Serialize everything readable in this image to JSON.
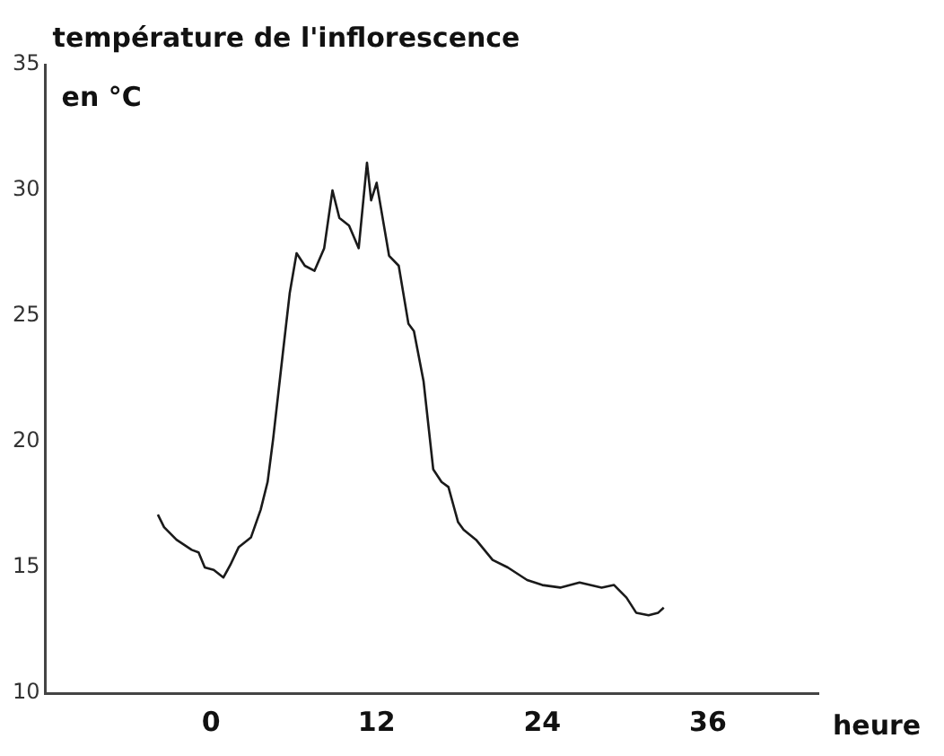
{
  "chart_data": {
    "type": "line",
    "title": "température de l'inflorescence",
    "ylabel": "en °C",
    "xlabel": "heure",
    "x": [
      -3.85,
      -3.4,
      -2.5,
      -1.4,
      -0.9,
      -0.45,
      0.2,
      0.9,
      1.4,
      2.0,
      2.9,
      3.6,
      4.1,
      4.5,
      5.2,
      5.7,
      6.2,
      6.8,
      7.5,
      8.2,
      8.8,
      9.3,
      10.0,
      10.7,
      11.3,
      11.6,
      12.0,
      12.9,
      13.6,
      14.3,
      14.7,
      15.4,
      16.1,
      16.7,
      17.2,
      17.9,
      18.3,
      19.2,
      20.4,
      21.5,
      22.9,
      24.0,
      25.3,
      26.7,
      28.3,
      29.2,
      30.1,
      30.8,
      31.7,
      32.4,
      32.8
    ],
    "values": [
      17.1,
      16.6,
      16.1,
      15.7,
      15.6,
      15.0,
      14.9,
      14.6,
      15.1,
      15.8,
      16.2,
      17.3,
      18.4,
      20.1,
      23.5,
      25.9,
      27.5,
      27.0,
      26.8,
      27.7,
      30.0,
      28.9,
      28.6,
      27.7,
      31.1,
      29.6,
      30.3,
      27.4,
      27.0,
      24.7,
      24.4,
      22.4,
      18.9,
      18.4,
      18.2,
      16.8,
      16.5,
      16.1,
      15.3,
      15.0,
      14.5,
      14.3,
      14.2,
      14.4,
      14.2,
      14.3,
      13.8,
      13.2,
      13.1,
      13.2,
      13.4
    ],
    "color": "#1a1a1a",
    "xlim": [
      -12,
      44
    ],
    "xticks": [
      0,
      12,
      24,
      36
    ],
    "ylim": [
      10,
      35
    ],
    "yticks": [
      10,
      15,
      20,
      25,
      30,
      35
    ],
    "grid": false,
    "legend": false,
    "marker": "none",
    "line_style": "solid"
  }
}
